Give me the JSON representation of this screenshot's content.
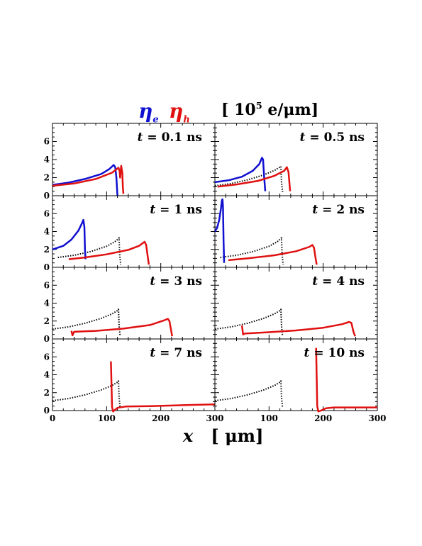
{
  "header": {
    "eta_symbol": "η",
    "electron_sub": "e",
    "hole_sub": "h",
    "units_prefix": "[ 10",
    "units_exp": "5",
    "units_suffix": " e/μm]"
  },
  "xaxis_title": {
    "var": "x",
    "units": "[ μm]"
  },
  "colors": {
    "electron": "#1010d0",
    "hole": "#e01010",
    "reference": "#000000"
  },
  "chart_data": [
    {
      "type": "line",
      "title": "t = 0.1 ns",
      "xlim": [
        0,
        300
      ],
      "ylim": [
        0,
        8
      ],
      "yticks": [
        0,
        2,
        4,
        6
      ],
      "xticks": [
        0,
        100,
        200,
        300
      ],
      "series": [
        {
          "name": "η_e",
          "color": "#1010d0",
          "style": "solid",
          "points": [
            [
              0,
              1.2
            ],
            [
              30,
              1.45
            ],
            [
              60,
              1.85
            ],
            [
              90,
              2.4
            ],
            [
              105,
              2.95
            ],
            [
              113,
              3.4
            ],
            [
              116,
              3.15
            ],
            [
              118,
              2.0
            ],
            [
              120,
              0
            ]
          ]
        },
        {
          "name": "η_h",
          "color": "#e01010",
          "style": "solid",
          "points": [
            [
              0,
              1.1
            ],
            [
              40,
              1.35
            ],
            [
              80,
              1.85
            ],
            [
              110,
              2.55
            ],
            [
              122,
              3.1
            ],
            [
              124,
              2.7
            ],
            [
              125,
              2.0
            ],
            [
              127,
              3.3
            ],
            [
              129,
              2.5
            ],
            [
              130,
              1.0
            ],
            [
              131,
              0.2
            ]
          ]
        }
      ]
    },
    {
      "type": "line",
      "title": "t = 0.5 ns",
      "xlim": [
        0,
        300
      ],
      "ylim": [
        0,
        8
      ],
      "yticks": [
        0,
        2,
        4,
        6
      ],
      "xticks": [
        0,
        100,
        200,
        300
      ],
      "series": [
        {
          "name": "reference",
          "color": "#000000",
          "style": "dotted",
          "points": [
            [
              0,
              1.1
            ],
            [
              30,
              1.35
            ],
            [
              60,
              1.75
            ],
            [
              90,
              2.3
            ],
            [
              110,
              2.8
            ],
            [
              121,
              3.2
            ],
            [
              122,
              3.25
            ],
            [
              123,
              1.5
            ],
            [
              125,
              0.4
            ]
          ]
        },
        {
          "name": "η_e",
          "color": "#1010d0",
          "style": "solid",
          "points": [
            [
              0,
              1.5
            ],
            [
              25,
              1.7
            ],
            [
              50,
              2.1
            ],
            [
              70,
              2.75
            ],
            [
              82,
              3.5
            ],
            [
              87,
              4.2
            ],
            [
              89,
              4.0
            ],
            [
              91,
              2.0
            ],
            [
              93,
              0.5
            ]
          ]
        },
        {
          "name": "η_h",
          "color": "#e01010",
          "style": "solid",
          "points": [
            [
              5,
              1.0
            ],
            [
              40,
              1.25
            ],
            [
              80,
              1.65
            ],
            [
              110,
              2.2
            ],
            [
              128,
              2.75
            ],
            [
              133,
              3.15
            ],
            [
              136,
              2.6
            ],
            [
              138,
              1.2
            ],
            [
              139,
              0.5
            ]
          ]
        }
      ]
    },
    {
      "type": "line",
      "title": "t = 1  ns",
      "xlim": [
        0,
        300
      ],
      "ylim": [
        0,
        8
      ],
      "yticks": [
        0,
        2,
        4,
        6
      ],
      "xticks": [
        0,
        100,
        200,
        300
      ],
      "series": [
        {
          "name": "reference",
          "color": "#000000",
          "style": "dotted",
          "points": [
            [
              10,
              1.1
            ],
            [
              40,
              1.35
            ],
            [
              70,
              1.75
            ],
            [
              100,
              2.35
            ],
            [
              115,
              2.85
            ],
            [
              122,
              3.2
            ],
            [
              123,
              3.3
            ],
            [
              124,
              1.5
            ],
            [
              126,
              0.3
            ]
          ]
        },
        {
          "name": "η_e",
          "color": "#1010d0",
          "style": "solid",
          "points": [
            [
              0,
              2.0
            ],
            [
              20,
              2.4
            ],
            [
              35,
              3.1
            ],
            [
              48,
              4.1
            ],
            [
              55,
              5.0
            ],
            [
              57,
              5.3
            ],
            [
              59,
              4.5
            ],
            [
              60,
              2.0
            ],
            [
              61,
              0.9
            ]
          ]
        },
        {
          "name": "η_h",
          "color": "#e01010",
          "style": "solid",
          "points": [
            [
              30,
              0.9
            ],
            [
              60,
              1.1
            ],
            [
              100,
              1.45
            ],
            [
              140,
              1.95
            ],
            [
              160,
              2.4
            ],
            [
              170,
              2.85
            ],
            [
              173,
              2.5
            ],
            [
              176,
              1.2
            ],
            [
              178,
              0.3
            ]
          ]
        }
      ]
    },
    {
      "type": "line",
      "title": "t = 2  ns",
      "xlim": [
        0,
        300
      ],
      "ylim": [
        0,
        8
      ],
      "yticks": [
        0,
        2,
        4,
        6
      ],
      "xticks": [
        0,
        100,
        200,
        300
      ],
      "series": [
        {
          "name": "reference",
          "color": "#000000",
          "style": "dotted",
          "points": [
            [
              10,
              1.1
            ],
            [
              40,
              1.35
            ],
            [
              70,
              1.75
            ],
            [
              100,
              2.35
            ],
            [
              115,
              2.85
            ],
            [
              122,
              3.2
            ],
            [
              123,
              3.3
            ],
            [
              124,
              1.5
            ],
            [
              126,
              0.3
            ]
          ]
        },
        {
          "name": "η_e",
          "color": "#1010d0",
          "style": "solid",
          "points": [
            [
              0,
              4.0
            ],
            [
              4,
              4.4
            ],
            [
              8,
              5.3
            ],
            [
              11,
              6.5
            ],
            [
              13,
              7.5
            ],
            [
              14,
              7.6
            ],
            [
              15,
              6.8
            ],
            [
              16,
              3.0
            ],
            [
              17,
              0.5
            ]
          ]
        },
        {
          "name": "η_h",
          "color": "#e01010",
          "style": "solid",
          "points": [
            [
              25,
              0.8
            ],
            [
              60,
              1.0
            ],
            [
              110,
              1.35
            ],
            [
              150,
              1.8
            ],
            [
              175,
              2.3
            ],
            [
              180,
              2.5
            ],
            [
              183,
              2.2
            ],
            [
              186,
              1.0
            ],
            [
              188,
              0.3
            ]
          ]
        }
      ]
    },
    {
      "type": "line",
      "title": "t = 3  ns",
      "xlim": [
        0,
        300
      ],
      "ylim": [
        0,
        8
      ],
      "yticks": [
        0,
        2,
        4,
        6
      ],
      "xticks": [
        0,
        100,
        200,
        300
      ],
      "series": [
        {
          "name": "reference",
          "color": "#000000",
          "style": "dotted",
          "points": [
            [
              0,
              1.1
            ],
            [
              30,
              1.35
            ],
            [
              60,
              1.75
            ],
            [
              90,
              2.3
            ],
            [
              110,
              2.8
            ],
            [
              121,
              3.2
            ],
            [
              122,
              3.3
            ],
            [
              123,
              1.5
            ],
            [
              125,
              0.3
            ]
          ]
        },
        {
          "name": "η_h",
          "color": "#e01010",
          "style": "solid",
          "points": [
            [
              35,
              0.9
            ],
            [
              37,
              0.4
            ],
            [
              40,
              0.8
            ],
            [
              80,
              0.9
            ],
            [
              130,
              1.15
            ],
            [
              180,
              1.55
            ],
            [
              205,
              2.05
            ],
            [
              213,
              2.25
            ],
            [
              216,
              2.0
            ],
            [
              219,
              1.0
            ],
            [
              221,
              0.3
            ]
          ]
        }
      ]
    },
    {
      "type": "line",
      "title": "t = 4  ns",
      "xlim": [
        0,
        300
      ],
      "ylim": [
        0,
        8
      ],
      "yticks": [
        0,
        2,
        4,
        6
      ],
      "xticks": [
        0,
        100,
        200,
        300
      ],
      "series": [
        {
          "name": "reference",
          "color": "#000000",
          "style": "dotted",
          "points": [
            [
              0,
              1.1
            ],
            [
              30,
              1.35
            ],
            [
              60,
              1.75
            ],
            [
              90,
              2.3
            ],
            [
              110,
              2.8
            ],
            [
              121,
              3.2
            ],
            [
              122,
              3.3
            ],
            [
              123,
              1.5
            ],
            [
              125,
              0.3
            ]
          ]
        },
        {
          "name": "η_h",
          "color": "#e01010",
          "style": "solid",
          "points": [
            [
              50,
              1.5
            ],
            [
              52,
              0.5
            ],
            [
              55,
              0.6
            ],
            [
              100,
              0.75
            ],
            [
              150,
              0.95
            ],
            [
              200,
              1.25
            ],
            [
              235,
              1.65
            ],
            [
              248,
              1.9
            ],
            [
              252,
              1.8
            ],
            [
              256,
              0.8
            ],
            [
              259,
              0.3
            ]
          ]
        }
      ]
    },
    {
      "type": "line",
      "title": "t = 7  ns",
      "xlim": [
        0,
        300
      ],
      "ylim": [
        0,
        8
      ],
      "yticks": [
        0,
        2,
        4,
        6
      ],
      "xticks": [
        0,
        100,
        200,
        300
      ],
      "series": [
        {
          "name": "reference",
          "color": "#000000",
          "style": "dotted",
          "points": [
            [
              0,
              1.1
            ],
            [
              30,
              1.35
            ],
            [
              60,
              1.75
            ],
            [
              90,
              2.3
            ],
            [
              110,
              2.8
            ],
            [
              121,
              3.2
            ],
            [
              122,
              3.3
            ],
            [
              123,
              1.5
            ],
            [
              125,
              0.3
            ]
          ]
        },
        {
          "name": "η_h",
          "color": "#e01010",
          "style": "solid",
          "points": [
            [
              108,
              5.5
            ],
            [
              110,
              0.4
            ],
            [
              112,
              -0.1
            ],
            [
              116,
              0.1
            ],
            [
              120,
              0.3
            ],
            [
              135,
              0.45
            ],
            [
              180,
              0.5
            ],
            [
              240,
              0.6
            ],
            [
              300,
              0.7
            ]
          ]
        }
      ]
    },
    {
      "type": "line",
      "title": "t = 10  ns",
      "xlim": [
        0,
        300
      ],
      "ylim": [
        0,
        8
      ],
      "yticks": [
        0,
        2,
        4,
        6
      ],
      "xticks": [
        0,
        100,
        200,
        300
      ],
      "series": [
        {
          "name": "reference",
          "color": "#000000",
          "style": "dotted",
          "points": [
            [
              0,
              1.1
            ],
            [
              30,
              1.35
            ],
            [
              60,
              1.75
            ],
            [
              90,
              2.3
            ],
            [
              110,
              2.8
            ],
            [
              121,
              3.2
            ],
            [
              122,
              3.3
            ],
            [
              123,
              1.5
            ],
            [
              125,
              0.3
            ]
          ]
        },
        {
          "name": "η_h",
          "color": "#e01010",
          "style": "solid",
          "points": [
            [
              187,
              7.0
            ],
            [
              189,
              0.5
            ],
            [
              191,
              -0.1
            ],
            [
              196,
              0.0
            ],
            [
              205,
              0.25
            ],
            [
              220,
              0.35
            ],
            [
              260,
              0.35
            ],
            [
              300,
              0.35
            ]
          ]
        }
      ]
    }
  ]
}
